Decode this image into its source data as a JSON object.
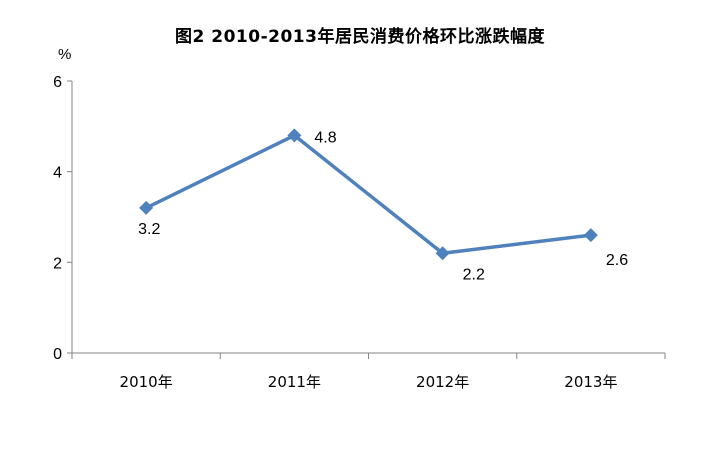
{
  "chart_data": {
    "type": "line",
    "title": "图2 2010-2013年居民消费价格环比涨跌幅度",
    "ylabel": "%",
    "xlabel": "",
    "categories": [
      "2010年",
      "2011年",
      "2012年",
      "2013年"
    ],
    "series": [
      {
        "values": [
          3.2,
          4.8,
          2.2,
          2.6
        ]
      }
    ],
    "ylim": [
      0,
      6
    ],
    "yticks": [
      0,
      2,
      4,
      6
    ],
    "ytick_labels": [
      "0",
      "2",
      "4",
      "6"
    ],
    "data_labels": [
      "3.2",
      "4.8",
      "2.2",
      "2.6"
    ],
    "grid": false,
    "legend": "none",
    "line_color": "#4F81BD",
    "axis_color": "#868686"
  }
}
